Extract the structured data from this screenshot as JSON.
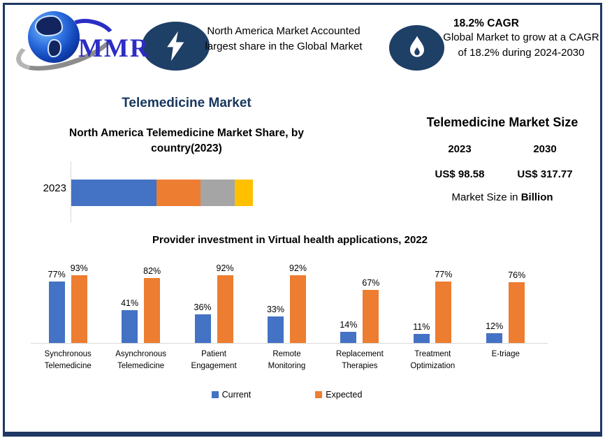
{
  "colors": {
    "border_navy": "#1f3864",
    "icon_navy": "#1e3f66",
    "title_navy": "#17365d",
    "logo_blue": "#2b2dc5",
    "series_blue": "#4472C4",
    "series_orange": "#ED7D31",
    "series_gray": "#A5A5A5",
    "series_yellow": "#FFC000",
    "axis_gray": "#d9d9d9"
  },
  "header": {
    "logo": {
      "text": "MMR"
    },
    "banner1": {
      "icon": "lightning-icon",
      "text": "North America Market Accounted largest share in the Global Market"
    },
    "banner2": {
      "icon": "flame-icon",
      "title": "18.2% CAGR",
      "text": "Global Market to grow at a CAGR of 18.2% during 2024-2030"
    }
  },
  "section_title": "Telemedicine Market",
  "market_size": {
    "title": "Telemedicine Market Size",
    "columns": [
      {
        "year": "2023",
        "value": "US$ 98.58"
      },
      {
        "year": "2030",
        "value": "US$ 317.77"
      }
    ],
    "note_prefix": "Market Size in ",
    "note_bold": "Billion"
  },
  "chart_data": [
    {
      "type": "bar",
      "orientation": "horizontal-stacked",
      "title": "North America Telemedicine Market Share, by country(2023)",
      "categories": [
        "2023"
      ],
      "segments": [
        {
          "value_pct": 47,
          "color": "#4472C4"
        },
        {
          "value_pct": 24,
          "color": "#ED7D31"
        },
        {
          "value_pct": 19,
          "color": "#A5A5A5"
        },
        {
          "value_pct": 10,
          "color": "#FFC000"
        }
      ],
      "gridlines": false,
      "legend": "none"
    },
    {
      "type": "bar",
      "title": "Provider investment in Virtual health applications, 2022",
      "categories": [
        "Synchronous Telemedicine",
        "Asynchronous Telemedicine",
        "Patient Engagement",
        "Remote Monitoring",
        "Replacement Therapies",
        "Treatment Optimization",
        "E-triage"
      ],
      "series": [
        {
          "name": "Current",
          "color": "#4472C4",
          "values": [
            77,
            41,
            36,
            33,
            14,
            11,
            12
          ]
        },
        {
          "name": "Expected",
          "color": "#ED7D31",
          "values": [
            93,
            82,
            92,
            92,
            67,
            77,
            76
          ]
        }
      ],
      "value_suffix": "%",
      "ylim": [
        0,
        100
      ],
      "legend_position": "bottom",
      "gridlines": false
    }
  ]
}
